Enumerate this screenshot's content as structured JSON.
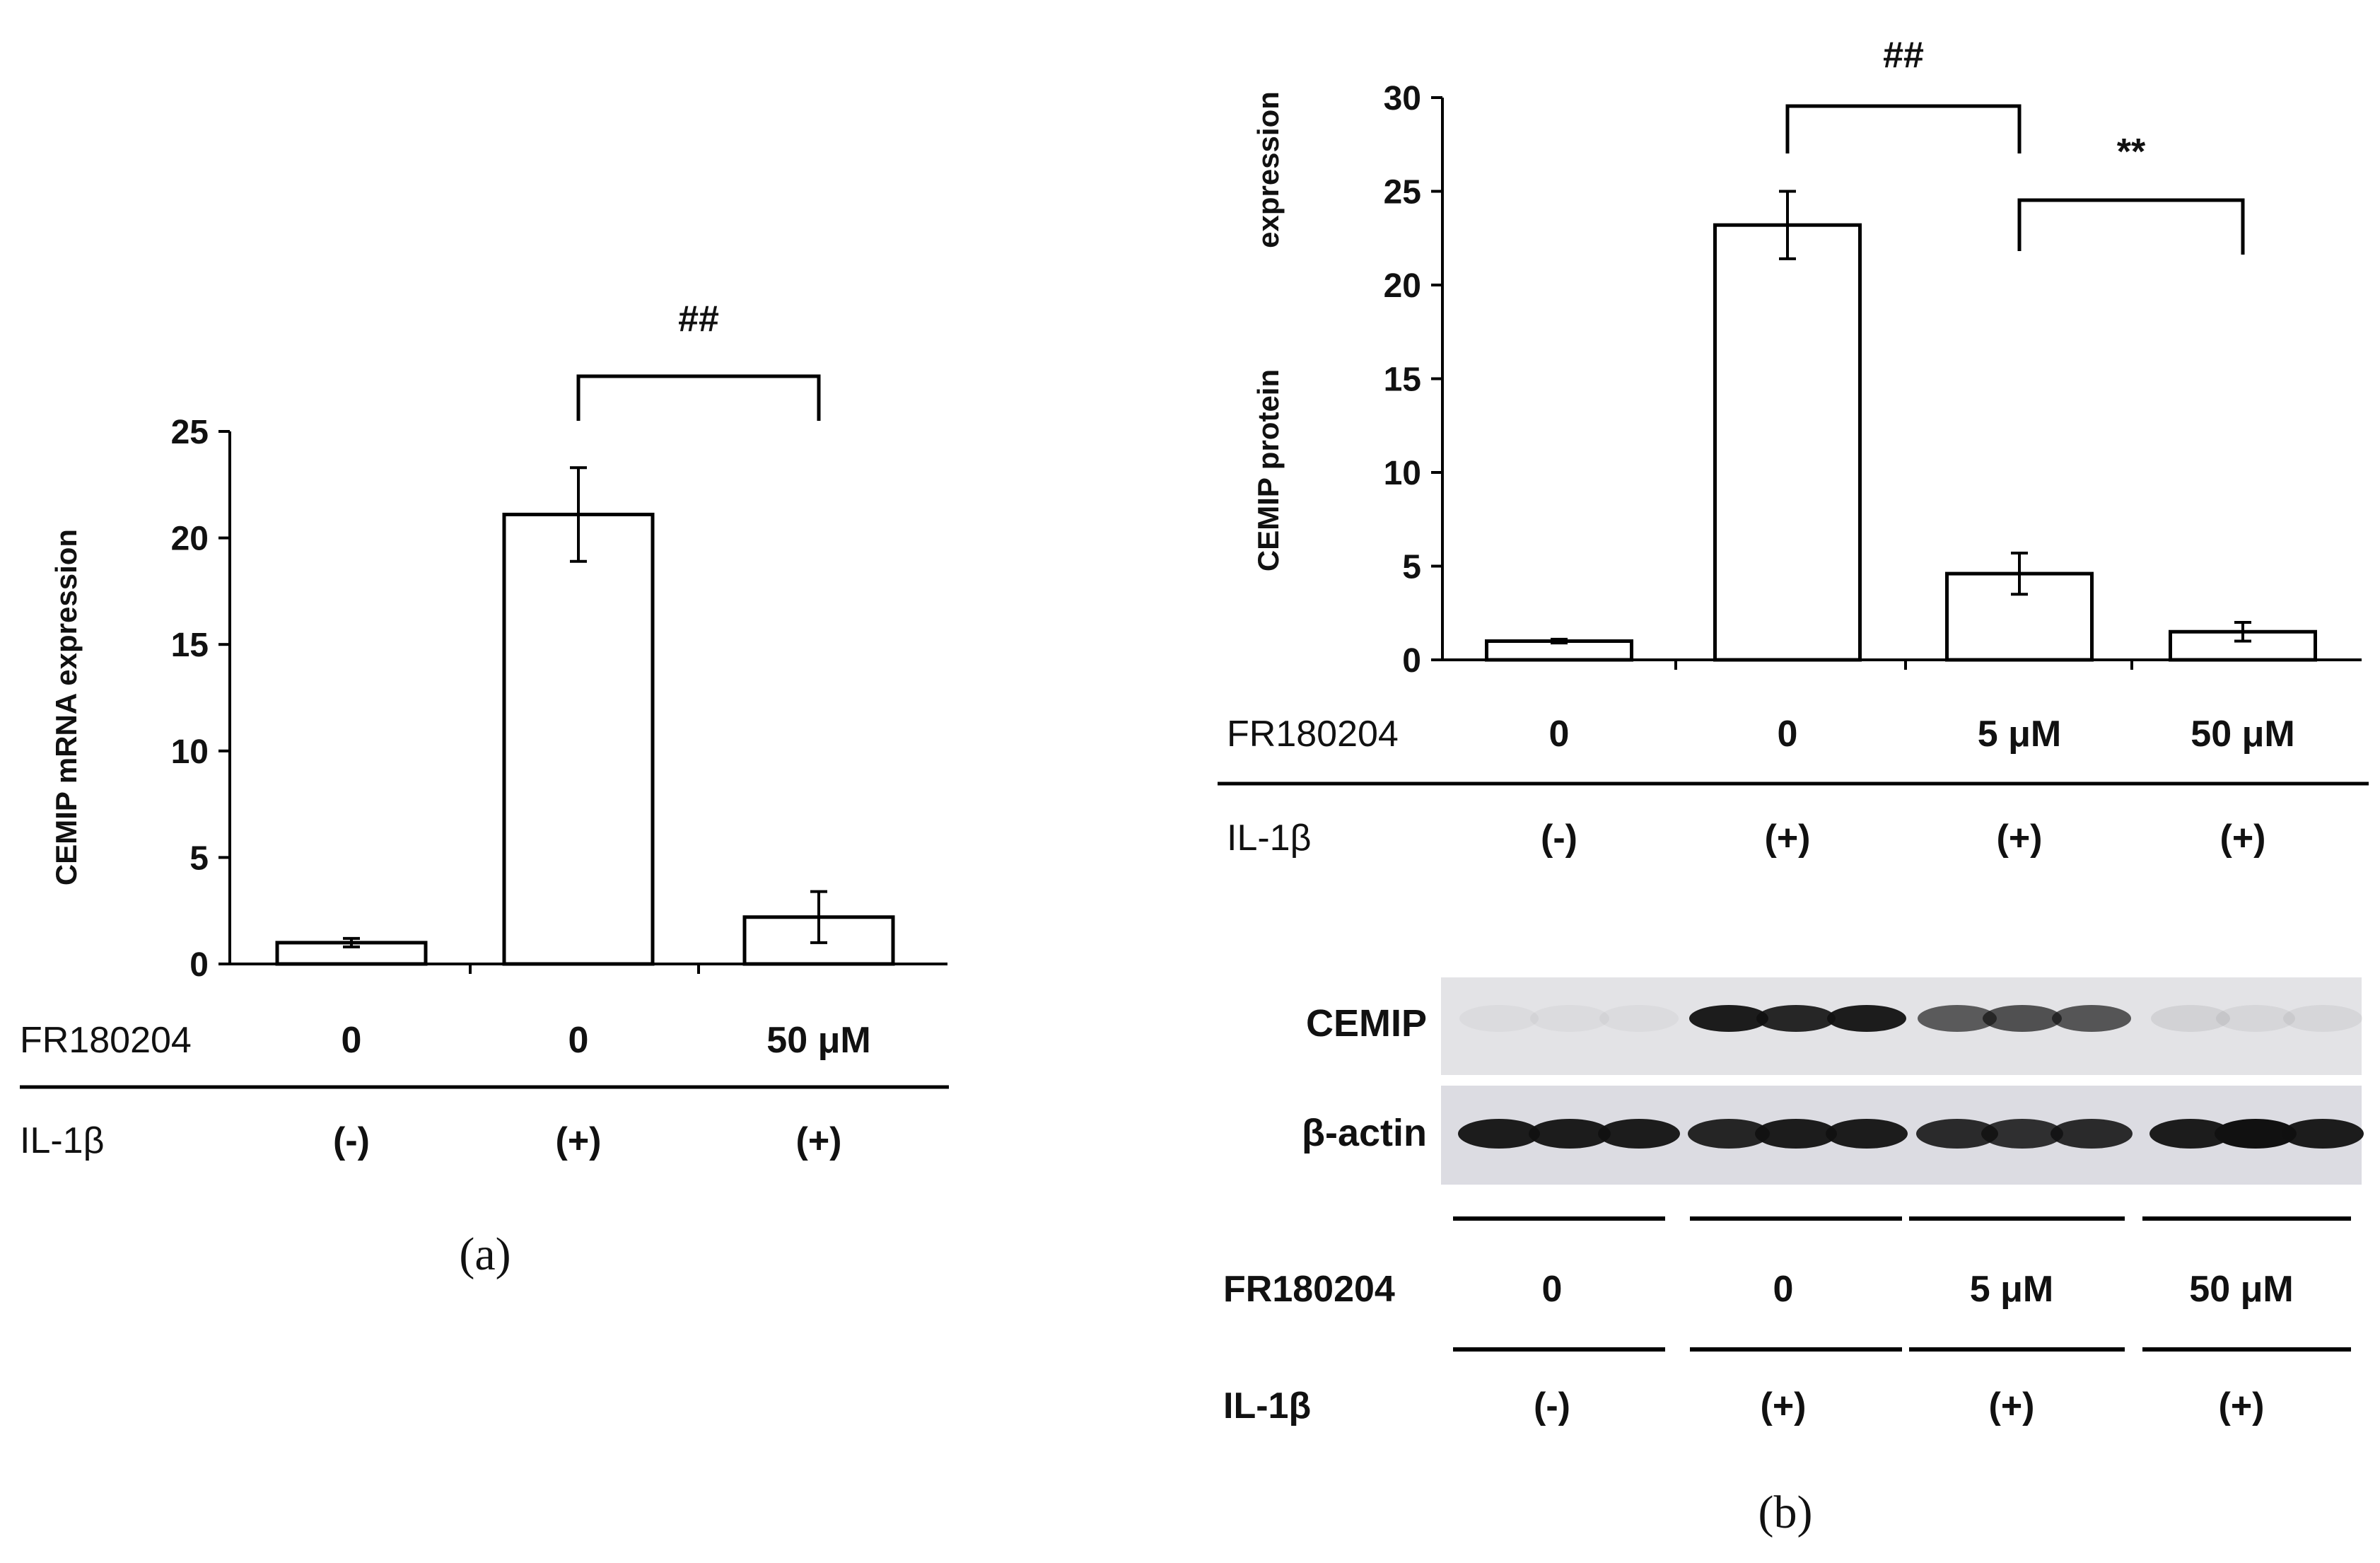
{
  "chart_data": [
    {
      "type": "bar",
      "panel_label": "(a)",
      "ylabel": "CEMIP mRNA expression",
      "ylim": [
        0,
        25
      ],
      "yticks": [
        "0",
        "5",
        "10",
        "15",
        "20",
        "25"
      ],
      "rows": [
        {
          "label": "FR180204",
          "values": [
            "0",
            "0",
            "50 μM"
          ]
        },
        {
          "label": "IL-1β",
          "values": [
            "(-)",
            "(+)",
            "(+)"
          ]
        }
      ],
      "values": [
        1.0,
        21.1,
        2.2
      ],
      "errors": [
        0.2,
        2.2,
        1.2
      ],
      "significance": [
        {
          "from": 1,
          "to": 2,
          "label": "##"
        }
      ]
    },
    {
      "type": "bar",
      "panel_label": "(b)",
      "ylabel_line1": "CEMIP protein",
      "ylabel_line2": "expression",
      "ylim": [
        0,
        30
      ],
      "yticks": [
        "0",
        "5",
        "10",
        "15",
        "20",
        "25",
        "30"
      ],
      "rows": [
        {
          "label": "FR180204",
          "values": [
            "0",
            "0",
            "5 μM",
            "50 μM"
          ]
        },
        {
          "label": "IL-1β",
          "values": [
            "(-)",
            "(+)",
            "(+)",
            "(+)"
          ]
        }
      ],
      "values": [
        1.0,
        23.2,
        4.6,
        1.5
      ],
      "errors": [
        0.1,
        1.8,
        1.1,
        0.5
      ],
      "significance": [
        {
          "from": 1,
          "to": 2,
          "label": "##"
        },
        {
          "from": 2,
          "to": 3,
          "label": "**"
        }
      ]
    }
  ],
  "blot": {
    "bands": [
      "CEMIP",
      "β-actin"
    ],
    "cemip_intensity": [
      0.04,
      0.04,
      0.04,
      0.95,
      0.9,
      0.95,
      0.65,
      0.7,
      0.68,
      0.08,
      0.06,
      0.06
    ],
    "actin_intensity": [
      0.95,
      0.95,
      0.95,
      0.9,
      0.95,
      0.95,
      0.88,
      0.85,
      0.88,
      0.95,
      1.0,
      0.95
    ],
    "rows": [
      {
        "label": "FR180204",
        "values": [
          "0",
          "0",
          "5 μM",
          "50 μM"
        ]
      },
      {
        "label": "IL-1β",
        "values": [
          "(-)",
          "(+)",
          "(+)",
          "(+)"
        ]
      }
    ]
  }
}
